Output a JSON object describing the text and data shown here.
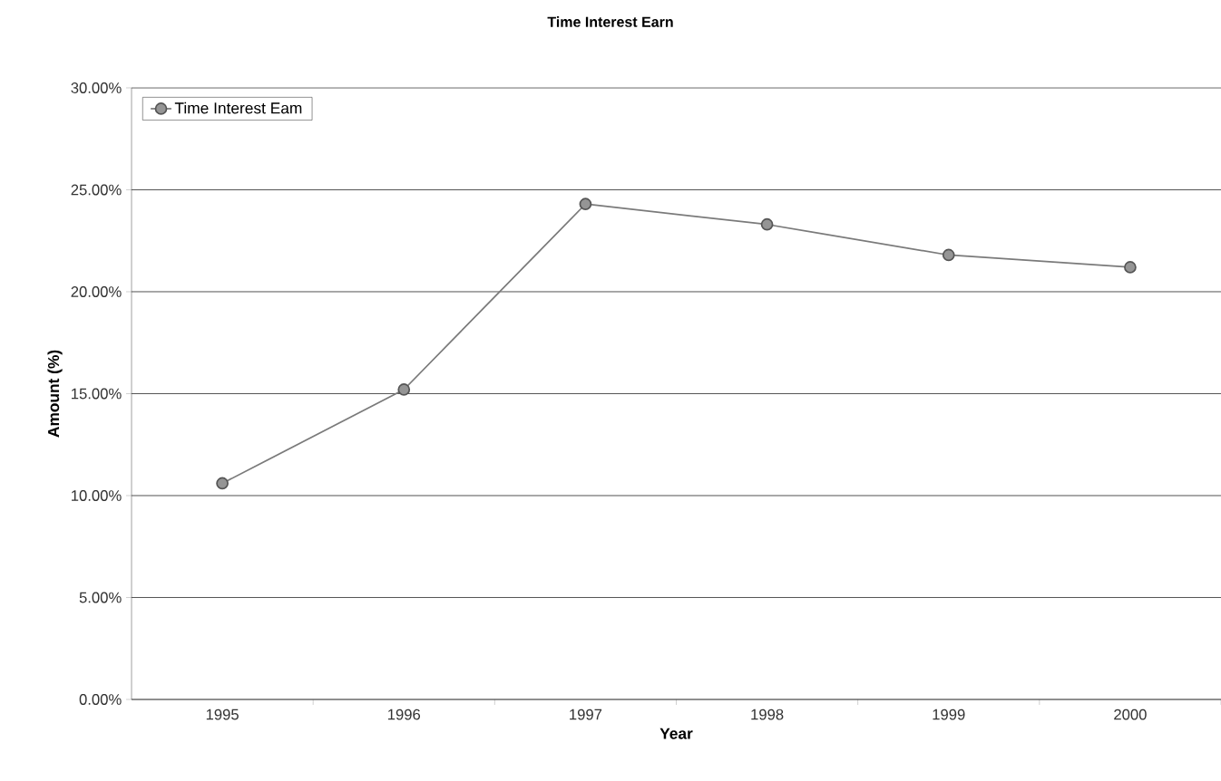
{
  "chart_data": {
    "type": "line",
    "title": "Time Interest Earn",
    "xlabel": "Year",
    "ylabel": "Amount (%)",
    "categories": [
      "1995",
      "1996",
      "1997",
      "1998",
      "1999",
      "2000"
    ],
    "series": [
      {
        "name": "Time Interest Eam",
        "color": "#7a7a7a",
        "values": [
          10.6,
          15.2,
          24.3,
          23.3,
          21.8,
          21.2
        ]
      }
    ],
    "ylim": [
      0,
      30
    ],
    "yticks": [
      {
        "value": 0,
        "label": "0.00%"
      },
      {
        "value": 5,
        "label": "5.00%"
      },
      {
        "value": 10,
        "label": "10.00%"
      },
      {
        "value": 15,
        "label": "15.00%"
      },
      {
        "value": 20,
        "label": "20.00%"
      },
      {
        "value": 25,
        "label": "25.00%"
      },
      {
        "value": 30,
        "label": "30.00%"
      }
    ],
    "grid": "y",
    "legend": "top left",
    "marker": "circle",
    "line_style": "solid"
  }
}
